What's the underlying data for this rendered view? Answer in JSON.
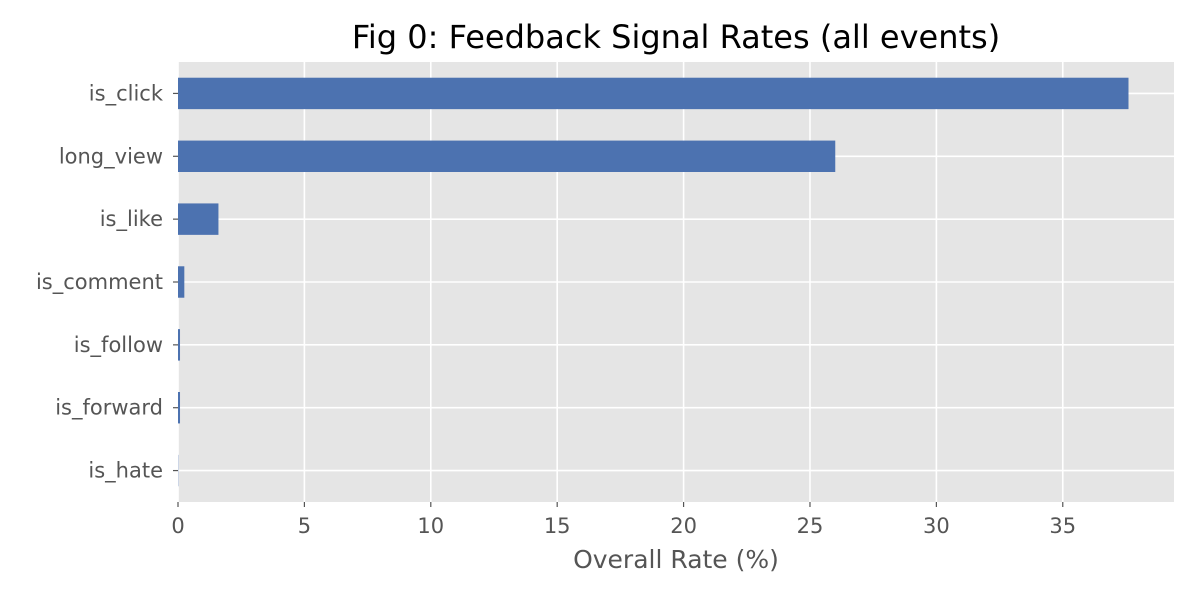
{
  "chart_data": {
    "type": "bar",
    "orientation": "horizontal",
    "title": "Fig 0: Feedback Signal Rates (all events)",
    "xlabel": "Overall Rate (%)",
    "ylabel": "",
    "categories": [
      "is_click",
      "long_view",
      "is_like",
      "is_comment",
      "is_follow",
      "is_forward",
      "is_hate"
    ],
    "values": [
      37.6,
      26.0,
      1.6,
      0.25,
      0.08,
      0.08,
      0.01
    ],
    "xlim": [
      0,
      39.4
    ],
    "xticks": [
      0,
      5,
      10,
      15,
      20,
      25,
      30,
      35
    ],
    "grid": true,
    "colors": {
      "bar": "#4c72b0",
      "background": "#e5e5e5",
      "grid": "#ffffff"
    }
  }
}
